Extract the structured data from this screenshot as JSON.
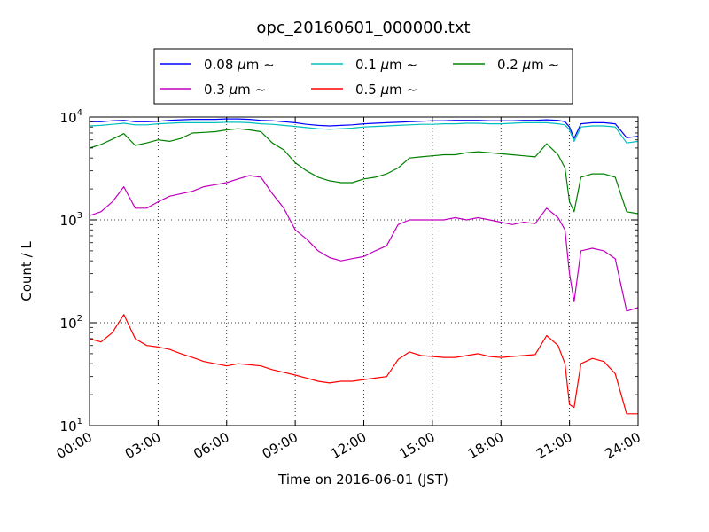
{
  "chart_data": {
    "type": "line",
    "title": "opc_20160601_000000.txt",
    "xlabel": "Time on 2016-06-01 (JST)",
    "ylabel": "Count / L",
    "x_unit": "hours",
    "xlim": [
      0,
      24
    ],
    "ylim": [
      10,
      10000
    ],
    "yscale": "log",
    "grid": true,
    "legend_position": "top-center, above plot, 3 columns",
    "x_ticks": [
      "00:00",
      "03:00",
      "06:00",
      "09:00",
      "12:00",
      "15:00",
      "18:00",
      "21:00",
      "24:00"
    ],
    "y_ticks": [
      {
        "value": 10,
        "base": "10",
        "exp": "1"
      },
      {
        "value": 100,
        "base": "10",
        "exp": "2"
      },
      {
        "value": 1000,
        "base": "10",
        "exp": "3"
      },
      {
        "value": 10000,
        "base": "10",
        "exp": "4"
      }
    ],
    "x": [
      0,
      0.5,
      1,
      1.5,
      2,
      2.5,
      3,
      3.5,
      4,
      4.5,
      5,
      5.5,
      6,
      6.5,
      7,
      7.5,
      8,
      8.5,
      9,
      9.5,
      10,
      10.5,
      11,
      11.5,
      12,
      12.5,
      13,
      13.5,
      14,
      14.5,
      15,
      15.5,
      16,
      16.5,
      17,
      17.5,
      18,
      18.5,
      19,
      19.5,
      20,
      20.5,
      20.8,
      21,
      21.2,
      21.5,
      22,
      22.5,
      23,
      23.5,
      24
    ],
    "series": [
      {
        "name": "0.08 μm ~",
        "label": "0.08 ",
        "color": "#0000ff",
        "values": [
          9000,
          9000,
          9200,
          9300,
          9000,
          9000,
          9100,
          9300,
          9400,
          9500,
          9500,
          9500,
          9600,
          9600,
          9500,
          9300,
          9200,
          9000,
          8800,
          8500,
          8300,
          8200,
          8300,
          8400,
          8600,
          8700,
          8800,
          8900,
          9000,
          9100,
          9200,
          9200,
          9300,
          9300,
          9300,
          9200,
          9200,
          9200,
          9300,
          9300,
          9400,
          9300,
          9000,
          8000,
          6200,
          8600,
          8800,
          8800,
          8600,
          6300,
          6500
        ]
      },
      {
        "name": "0.1 μm ~",
        "label": "0.1 ",
        "color": "#00bfbf",
        "values": [
          8200,
          8300,
          8500,
          8700,
          8400,
          8400,
          8600,
          8700,
          8800,
          8800,
          8800,
          8800,
          8900,
          8900,
          8800,
          8600,
          8500,
          8300,
          8100,
          7900,
          7700,
          7600,
          7700,
          7800,
          8000,
          8100,
          8200,
          8300,
          8400,
          8500,
          8500,
          8600,
          8600,
          8700,
          8700,
          8600,
          8600,
          8700,
          8800,
          8800,
          8800,
          8600,
          8400,
          7500,
          5800,
          8000,
          8200,
          8200,
          8000,
          5600,
          5800
        ]
      },
      {
        "name": "0.2 μm ~",
        "label": "0.2 ",
        "color": "#008000",
        "values": [
          5000,
          5400,
          6100,
          6900,
          5300,
          5600,
          6000,
          5800,
          6200,
          7000,
          7100,
          7200,
          7500,
          7700,
          7500,
          7200,
          5600,
          4800,
          3600,
          3000,
          2600,
          2400,
          2300,
          2300,
          2500,
          2600,
          2800,
          3200,
          4000,
          4100,
          4200,
          4300,
          4300,
          4500,
          4600,
          4500,
          4400,
          4300,
          4200,
          4100,
          5500,
          4300,
          3200,
          1500,
          1200,
          2600,
          2800,
          2800,
          2600,
          1200,
          1150
        ]
      },
      {
        "name": "0.3 μm ~",
        "label": "0.3 ",
        "color": "#bf00bf",
        "values": [
          1100,
          1200,
          1500,
          2100,
          1300,
          1300,
          1500,
          1700,
          1800,
          1900,
          2100,
          2200,
          2300,
          2500,
          2700,
          2600,
          1800,
          1300,
          800,
          650,
          500,
          430,
          400,
          420,
          440,
          500,
          560,
          900,
          1000,
          1000,
          1000,
          1000,
          1050,
          1000,
          1050,
          1000,
          950,
          900,
          950,
          920,
          1300,
          1050,
          800,
          300,
          160,
          500,
          530,
          500,
          420,
          130,
          140
        ]
      },
      {
        "name": "0.5 μm ~",
        "label": "0.5 ",
        "color": "#ff0000",
        "values": [
          70,
          65,
          80,
          120,
          70,
          60,
          58,
          55,
          50,
          46,
          42,
          40,
          38,
          40,
          39,
          38,
          35,
          33,
          31,
          29,
          27,
          26,
          27,
          27,
          28,
          29,
          30,
          44,
          52,
          48,
          47,
          46,
          46,
          48,
          50,
          47,
          46,
          47,
          48,
          49,
          75,
          60,
          40,
          16,
          15,
          40,
          45,
          42,
          32,
          13,
          13
        ]
      }
    ]
  }
}
